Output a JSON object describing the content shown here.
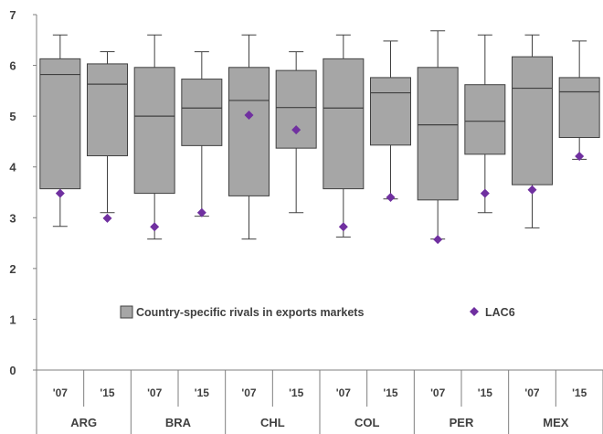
{
  "chart_data": {
    "type": "boxplot",
    "title": "",
    "xlabel": "",
    "ylabel": "",
    "ylim": [
      0,
      7
    ],
    "yticks": [
      "0",
      "1",
      "2",
      "3",
      "4",
      "5",
      "6",
      "7"
    ],
    "grid": false,
    "legend_position": "center",
    "legend": {
      "box_label": "Country-specific rivals in exports markets",
      "marker_label": "LAC6"
    },
    "colors": {
      "box_fill": "#a6a6a6",
      "box_stroke": "#404040",
      "marker": "#7030a0",
      "axis": "#7f7f7f"
    },
    "groups": [
      "ARG",
      "BRA",
      "CHL",
      "COL",
      "PER",
      "MEX"
    ],
    "years": [
      "'07",
      "'15"
    ],
    "series": [
      {
        "group": "ARG",
        "year": "'07",
        "whisker_low": 2.83,
        "q1": 3.57,
        "median": 5.82,
        "q3": 6.13,
        "whisker_high": 6.6,
        "lac6": 3.48
      },
      {
        "group": "ARG",
        "year": "'15",
        "whisker_low": 3.1,
        "q1": 4.22,
        "median": 5.63,
        "q3": 6.03,
        "whisker_high": 6.27,
        "lac6": 2.99
      },
      {
        "group": "BRA",
        "year": "'07",
        "whisker_low": 2.58,
        "q1": 3.48,
        "median": 5.0,
        "q3": 5.96,
        "whisker_high": 6.6,
        "lac6": 2.82
      },
      {
        "group": "BRA",
        "year": "'15",
        "whisker_low": 3.03,
        "q1": 4.42,
        "median": 5.16,
        "q3": 5.73,
        "whisker_high": 6.27,
        "lac6": 3.1
      },
      {
        "group": "CHL",
        "year": "'07",
        "whisker_low": 2.58,
        "q1": 3.43,
        "median": 5.31,
        "q3": 5.96,
        "whisker_high": 6.6,
        "lac6": 5.02
      },
      {
        "group": "CHL",
        "year": "'15",
        "whisker_low": 3.1,
        "q1": 4.37,
        "median": 5.17,
        "q3": 5.9,
        "whisker_high": 6.27,
        "lac6": 4.73
      },
      {
        "group": "COL",
        "year": "'07",
        "whisker_low": 2.62,
        "q1": 3.57,
        "median": 5.16,
        "q3": 6.13,
        "whisker_high": 6.6,
        "lac6": 2.82
      },
      {
        "group": "COL",
        "year": "'15",
        "whisker_low": 3.37,
        "q1": 4.43,
        "median": 5.46,
        "q3": 5.76,
        "whisker_high": 6.48,
        "lac6": 3.4
      },
      {
        "group": "PER",
        "year": "'07",
        "whisker_low": 2.58,
        "q1": 3.35,
        "median": 4.83,
        "q3": 5.96,
        "whisker_high": 6.68,
        "lac6": 2.57
      },
      {
        "group": "PER",
        "year": "'15",
        "whisker_low": 3.1,
        "q1": 4.25,
        "median": 4.9,
        "q3": 5.62,
        "whisker_high": 6.6,
        "lac6": 3.48
      },
      {
        "group": "MEX",
        "year": "'07",
        "whisker_low": 2.8,
        "q1": 3.65,
        "median": 5.55,
        "q3": 6.17,
        "whisker_high": 6.6,
        "lac6": 3.55
      },
      {
        "group": "MEX",
        "year": "'15",
        "whisker_low": 4.15,
        "q1": 4.58,
        "median": 5.48,
        "q3": 5.76,
        "whisker_high": 6.48,
        "lac6": 4.21
      }
    ]
  }
}
